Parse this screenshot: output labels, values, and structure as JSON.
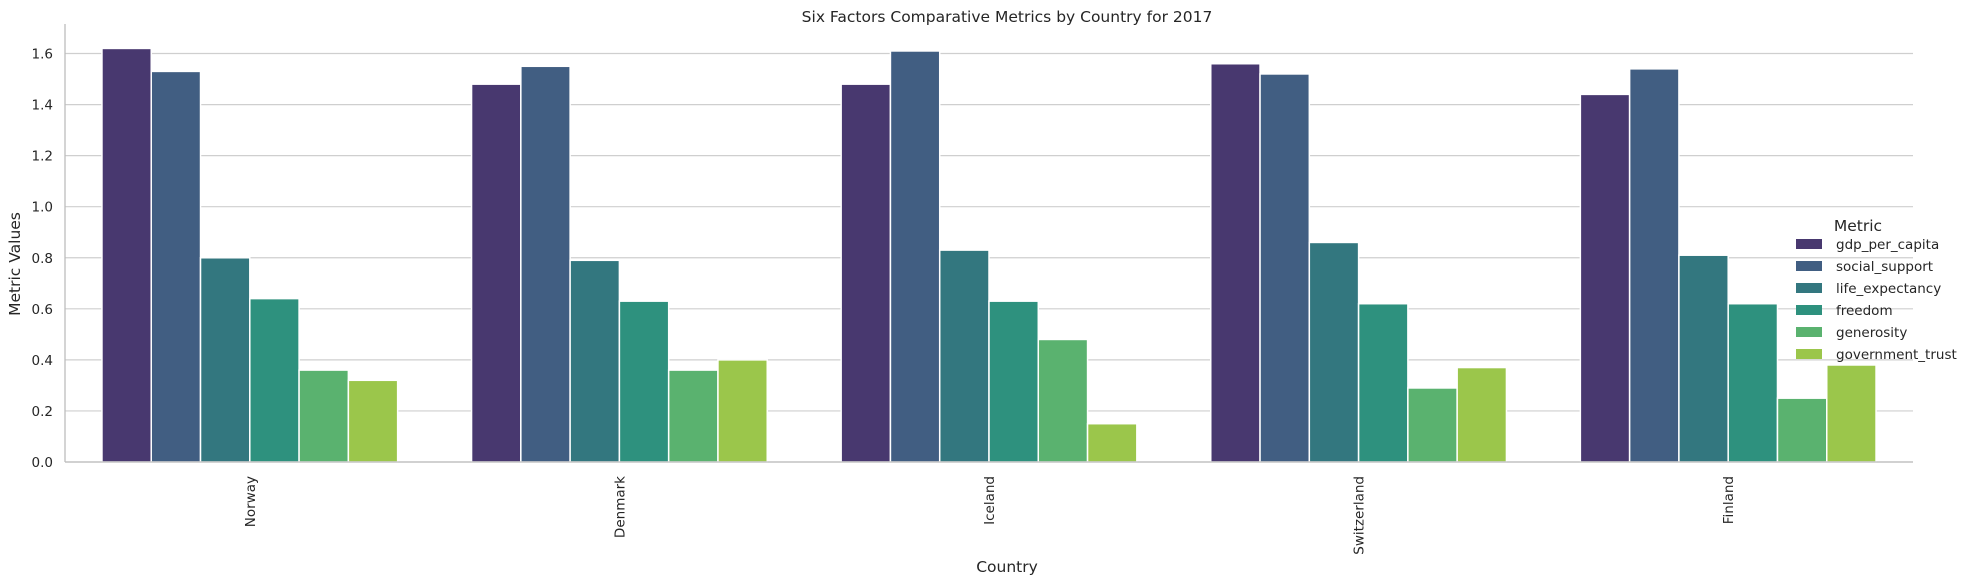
{
  "chart_data": {
    "type": "bar",
    "title": "Six Factors Comparative Metrics by Country for 2017",
    "xlabel": "Country",
    "ylabel": "Metric Values",
    "ylim": [
      0,
      1.7
    ],
    "yticks": [
      0.0,
      0.2,
      0.4,
      0.6,
      0.8,
      1.0,
      1.2,
      1.4,
      1.6
    ],
    "ytick_labels": [
      "0.0",
      "0.2",
      "0.4",
      "0.6",
      "0.8",
      "1.0",
      "1.2",
      "1.4",
      "1.6"
    ],
    "grid": "horizontal",
    "legend_title": "Metric",
    "legend_position": "right",
    "categories": [
      "Norway",
      "Denmark",
      "Iceland",
      "Switzerland",
      "Finland"
    ],
    "series": [
      {
        "name": "gdp_per_capita",
        "color": "#48386f",
        "values": [
          1.62,
          1.48,
          1.48,
          1.56,
          1.44
        ]
      },
      {
        "name": "social_support",
        "color": "#415e82",
        "values": [
          1.53,
          1.55,
          1.61,
          1.52,
          1.54
        ]
      },
      {
        "name": "life_expectancy",
        "color": "#33777f",
        "values": [
          0.8,
          0.79,
          0.83,
          0.86,
          0.81
        ]
      },
      {
        "name": "freedom",
        "color": "#2e917e",
        "values": [
          0.64,
          0.63,
          0.63,
          0.62,
          0.62
        ]
      },
      {
        "name": "generosity",
        "color": "#5ab26f",
        "values": [
          0.36,
          0.36,
          0.48,
          0.29,
          0.25
        ]
      },
      {
        "name": "government_trust",
        "color": "#9bc64b",
        "values": [
          0.32,
          0.4,
          0.15,
          0.37,
          0.38
        ]
      }
    ]
  }
}
